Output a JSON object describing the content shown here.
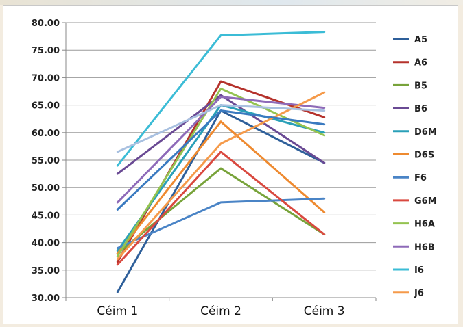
{
  "chart_data": {
    "type": "line",
    "title": "",
    "xlabel": "",
    "ylabel": "",
    "categories": [
      "Céim 1",
      "Céim 2",
      "Céim 3"
    ],
    "ylim": [
      30,
      80
    ],
    "yticks": [
      "30.00",
      "35.00",
      "40.00",
      "45.00",
      "50.00",
      "55.00",
      "60.00",
      "65.00",
      "70.00",
      "75.00",
      "80.00"
    ],
    "grid": true,
    "legend_position": "right",
    "series": [
      {
        "name": "A5",
        "color": "#2e5f9a",
        "values": [
          31.0,
          64.0,
          54.5
        ]
      },
      {
        "name": "A6",
        "color": "#b5322c",
        "values": [
          36.5,
          69.3,
          62.8
        ]
      },
      {
        "name": "B5",
        "color": "#78a33a",
        "values": [
          38.0,
          53.5,
          41.5
        ]
      },
      {
        "name": "B6",
        "color": "#6a4a94",
        "values": [
          52.5,
          66.8,
          54.5
        ]
      },
      {
        "name": "D6M",
        "color": "#2aa0b8",
        "values": [
          38.5,
          65.0,
          60.0
        ]
      },
      {
        "name": "D6S",
        "color": "#ee8a30",
        "values": [
          38.0,
          62.0,
          45.5
        ]
      },
      {
        "name": "F6",
        "color": "#4a84c6",
        "values": [
          39.0,
          47.3,
          48.0
        ]
      },
      {
        "name": "G6M",
        "color": "#d9493f",
        "values": [
          36.0,
          56.5,
          41.5
        ]
      },
      {
        "name": "H6A",
        "color": "#94c350",
        "values": [
          37.5,
          68.0,
          59.5
        ]
      },
      {
        "name": "H6B",
        "color": "#8e6ab8",
        "values": [
          47.3,
          66.5,
          64.5
        ]
      },
      {
        "name": "I6",
        "color": "#3bbcd6",
        "values": [
          54.0,
          77.7,
          78.3
        ]
      },
      {
        "name": "J6",
        "color": "#f59a4a",
        "values": [
          37.0,
          58.0,
          67.3
        ]
      },
      {
        "name": "",
        "color": "#a8c0e0",
        "values": [
          56.5,
          65.0,
          64.0
        ]
      },
      {
        "name": "",
        "color": "#3a7ac0",
        "values": [
          46.0,
          64.0,
          61.5
        ]
      }
    ]
  }
}
